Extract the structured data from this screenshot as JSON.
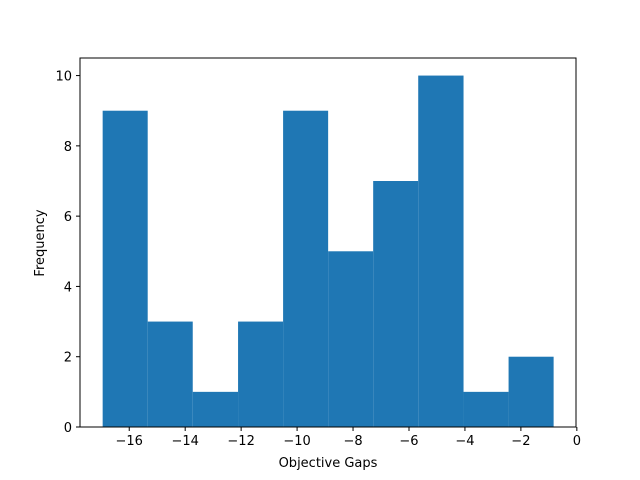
{
  "chart_data": {
    "type": "histogram",
    "xlabel": "Objective Gaps",
    "ylabel": "Frequency",
    "bins": [
      -16.95,
      -15.34,
      -13.73,
      -12.11,
      -10.5,
      -8.89,
      -7.28,
      -5.67,
      -4.05,
      -2.44,
      -0.83
    ],
    "values": [
      9,
      3,
      1,
      3,
      9,
      5,
      7,
      10,
      1,
      2
    ],
    "color": "#1f77b4",
    "xlim": [
      -17.76,
      -0.03
    ],
    "ylim": [
      0,
      10.5
    ],
    "xticks": [
      {
        "value": -16,
        "label": "−16"
      },
      {
        "value": -14,
        "label": "−14"
      },
      {
        "value": -12,
        "label": "−12"
      },
      {
        "value": -10,
        "label": "−10"
      },
      {
        "value": -8,
        "label": "−8"
      },
      {
        "value": -6,
        "label": "−6"
      },
      {
        "value": -4,
        "label": "−4"
      },
      {
        "value": -2,
        "label": "−2"
      },
      0
    ],
    "yticks": [
      0,
      2,
      4,
      6,
      8,
      10
    ]
  }
}
